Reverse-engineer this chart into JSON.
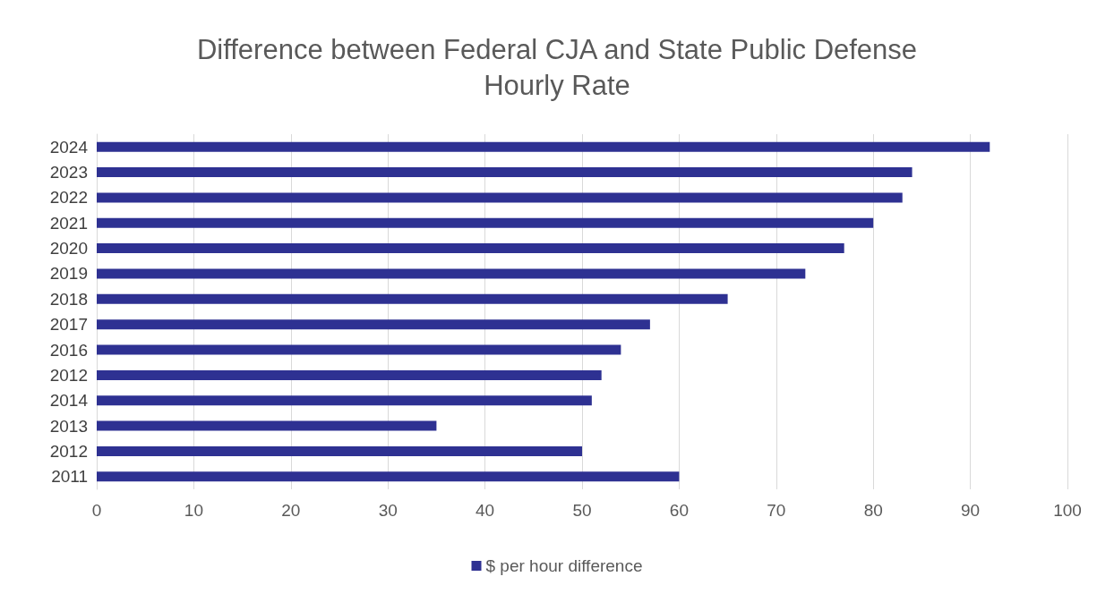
{
  "chart_data": {
    "type": "bar",
    "orientation": "horizontal",
    "title": "Difference between Federal CJA and State Public Defense\nHourly Rate",
    "categories": [
      "2024",
      "2023",
      "2022",
      "2021",
      "2020",
      "2019",
      "2018",
      "2017",
      "2016",
      "2012",
      "2014",
      "2013",
      "2012",
      "2011"
    ],
    "series": [
      {
        "name": "$ per hour difference",
        "color": "#2e3192",
        "values": [
          92,
          84,
          83,
          80,
          77,
          73,
          65,
          57,
          54,
          52,
          51,
          35,
          50,
          60
        ]
      }
    ],
    "xlim": [
      0,
      100
    ],
    "xticks": [
      0,
      10,
      20,
      30,
      40,
      50,
      60,
      70,
      80,
      90,
      100
    ],
    "grid": "x",
    "legend": "bottom"
  }
}
